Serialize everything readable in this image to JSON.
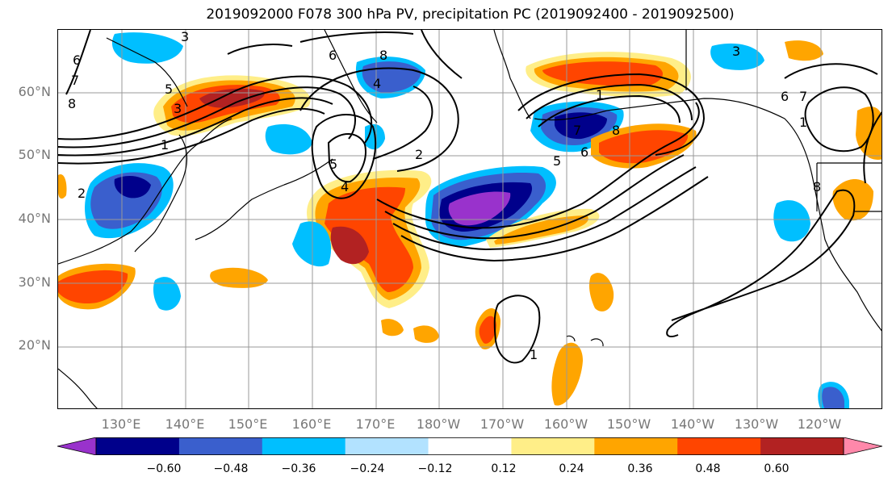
{
  "title": "2019092000 F078 300 hPa PV, precipitation PC (2019092400 - 2019092500)",
  "lat_labels": [
    "60°N",
    "50°N",
    "40°N",
    "30°N",
    "20°N"
  ],
  "lon_labels": [
    "130°E",
    "140°E",
    "150°E",
    "160°E",
    "170°E",
    "180°W",
    "170°W",
    "160°W",
    "150°W",
    "140°W",
    "130°W",
    "120°W"
  ],
  "contour_labels": [
    "3",
    "6",
    "7",
    "8",
    "5",
    "6",
    "8",
    "4",
    "2",
    "1",
    "3",
    "5",
    "2",
    "1",
    "8",
    "6",
    "7",
    "1",
    "5",
    "4",
    "3",
    "6",
    "7",
    "8",
    "1"
  ],
  "colorbar": {
    "ticks": [
      "−0.60",
      "−0.48",
      "−0.36",
      "−0.24",
      "−0.12",
      "0.12",
      "0.24",
      "0.36",
      "0.48",
      "0.60"
    ],
    "colors": [
      "#9932cc",
      "#00008b",
      "#3a5fcd",
      "#00bfff",
      "#b2e2ff",
      "#ffffff",
      "#ffee88",
      "#ffa500",
      "#ff4500",
      "#b22222",
      "#ff88aa"
    ]
  },
  "colors": {
    "neg_strong": "#00008b",
    "neg_purple": "#9932cc",
    "neg_mid": "#3a5fcd",
    "neg_light": "#00bfff",
    "neg_pale": "#b2e2ff",
    "pos_pale": "#ffee88",
    "pos_mid": "#ffa500",
    "pos_strong": "#ff4500",
    "pos_dark": "#b22222"
  }
}
